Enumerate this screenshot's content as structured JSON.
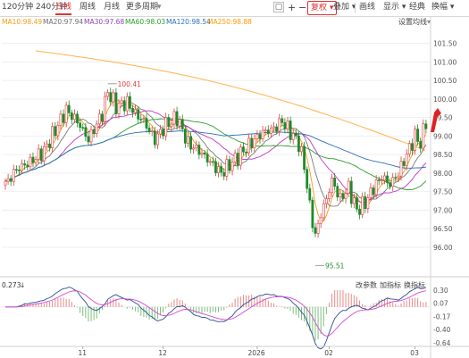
{
  "toolbar": {
    "period_combo": "120分钟 240分钟",
    "tabs": [
      "日线",
      "周线",
      "月线",
      "更多周期"
    ],
    "active_tab": 0,
    "more_arrow": "▾",
    "icon_square": "▢",
    "icon_plus": "+",
    "icon_minus": "−",
    "restore_label": "复权",
    "overlay_label": "叠加",
    "draw_label": "画线",
    "display_label": "显示",
    "classic_label": "经典",
    "switch_label": "换幅"
  },
  "ma_legend": {
    "items": [
      {
        "label": "MA10:98.49",
        "color": "#f39c12"
      },
      {
        "label": "MA20:97.94",
        "color": "#6e6e6e"
      },
      {
        "label": "MA30:97.68",
        "color": "#8e44ad"
      },
      {
        "label": "MA60:98.03",
        "color": "#2a9d2a"
      },
      {
        "label": "MA120:98.54",
        "color": "#2c6fbb"
      },
      {
        "label": "MA250:98.88",
        "color": "#ff9900"
      }
    ],
    "settings_label": "设置均线"
  },
  "price_axis": [
    "101.50",
    "101.00",
    "100.50",
    "100.00",
    "99.50",
    "99.00",
    "98.50",
    "98.00",
    "97.50",
    "97.00",
    "96.50",
    "96.00"
  ],
  "annotations": {
    "high": "100.41",
    "low": "95.51"
  },
  "indicator": {
    "value_label": "0.273",
    "arrow": "↓",
    "buttons": [
      "改参数",
      "加指标",
      "换指标"
    ],
    "axis": [
      "0.30",
      "0.07",
      "-0.17",
      "-0.40",
      "-0.64"
    ]
  },
  "x_axis": [
    "11",
    "12",
    "2026",
    "02",
    "03"
  ],
  "chart_data": {
    "type": "candlestick",
    "ylim": [
      95.3,
      101.9
    ],
    "x_axis_labels": [
      "11",
      "12",
      "2026",
      "02",
      "03"
    ],
    "ma_series": [
      {
        "name": "MA10",
        "last": 98.49
      },
      {
        "name": "MA20",
        "last": 97.94
      },
      {
        "name": "MA30",
        "last": 97.68
      },
      {
        "name": "MA60",
        "last": 98.03
      },
      {
        "name": "MA120",
        "last": 98.54
      },
      {
        "name": "MA250",
        "last": 98.88
      }
    ],
    "high_marker": 100.41,
    "low_marker": 95.51,
    "indicator": {
      "value": 0.273,
      "ylim": [
        -0.64,
        0.3
      ]
    },
    "colors": {
      "up": "#e23b3b",
      "down": "#1f8a2b"
    }
  }
}
